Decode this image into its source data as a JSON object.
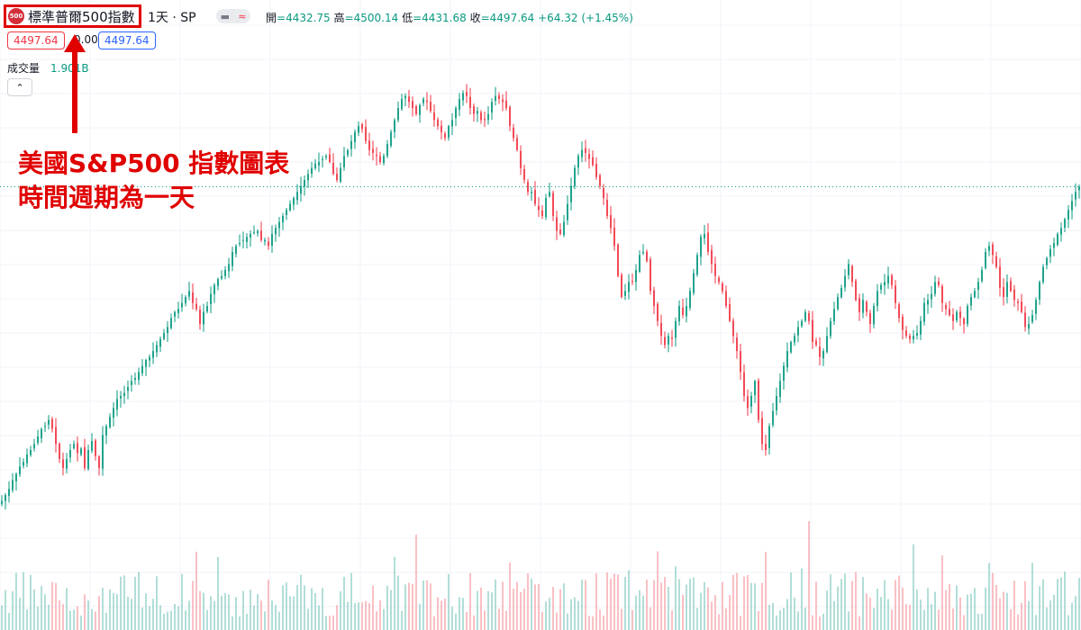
{
  "header": {
    "logo_text": "500",
    "symbol_name": "標準普爾500指數",
    "interval": "1天 · SP",
    "toggle": {
      "left_icon": "pill-icon",
      "right_icon": "approx-icon",
      "right_symbol": "≈"
    },
    "ohlc": {
      "open_label": "開",
      "open": "=4432.75",
      "high_label": "高",
      "high": "=4500.14",
      "low_label": "低",
      "low": "=4431.68",
      "close_label": "收",
      "close": "=4497.64",
      "change": "+64.32 (+1.45%)"
    },
    "price_boxes": {
      "bid": "4497.64",
      "spread": "0.00",
      "ask": "4497.64"
    },
    "volume": {
      "label": "成交量",
      "value": "1.901B"
    },
    "collapse_symbol": "⌃"
  },
  "annotation": {
    "line1": "美國S&P500 指數圖表",
    "line2": "時間週期為一天"
  },
  "colors": {
    "up": "#089981",
    "down": "#f23645",
    "annotation": "#e00000",
    "grid": "#f0f3fa"
  },
  "chart_data": {
    "type": "candlestick",
    "close_reference": 4497.64,
    "y_range": [
      3440,
      4940
    ],
    "grid": true,
    "volume_panel": true,
    "series_close": [
      3450,
      3470,
      3490,
      3520,
      3540,
      3565,
      3580,
      3605,
      3620,
      3640,
      3665,
      3690,
      3700,
      3720,
      3690,
      3640,
      3590,
      3560,
      3590,
      3620,
      3640,
      3610,
      3625,
      3560,
      3620,
      3650,
      3600,
      3560,
      3670,
      3700,
      3730,
      3760,
      3790,
      3800,
      3810,
      3830,
      3850,
      3860,
      3880,
      3900,
      3920,
      3930,
      3950,
      3970,
      3990,
      4010,
      4030,
      4060,
      4080,
      4090,
      4110,
      4130,
      4150,
      4110,
      4090,
      4040,
      4080,
      4100,
      4140,
      4170,
      4190,
      4200,
      4220,
      4240,
      4280,
      4300,
      4310,
      4320,
      4330,
      4340,
      4345,
      4350,
      4320,
      4320,
      4300,
      4340,
      4360,
      4380,
      4400,
      4420,
      4440,
      4460,
      4480,
      4500,
      4520,
      4540,
      4560,
      4575,
      4580,
      4590,
      4600,
      4580,
      4540,
      4520,
      4560,
      4600,
      4620,
      4650,
      4680,
      4700,
      4690,
      4650,
      4620,
      4610,
      4600,
      4580,
      4600,
      4640,
      4680,
      4720,
      4760,
      4790,
      4800,
      4780,
      4760,
      4740,
      4770,
      4790,
      4780,
      4750,
      4720,
      4700,
      4680,
      4660,
      4700,
      4720,
      4760,
      4790,
      4810,
      4800,
      4760,
      4740,
      4750,
      4720,
      4720,
      4740,
      4780,
      4800,
      4790,
      4780,
      4760,
      4700,
      4660,
      4620,
      4560,
      4520,
      4480,
      4480,
      4440,
      4420,
      4400,
      4460,
      4480,
      4400,
      4350,
      4340,
      4380,
      4440,
      4500,
      4560,
      4600,
      4620,
      4610,
      4590,
      4570,
      4530,
      4500,
      4460,
      4400,
      4360,
      4300,
      4200,
      4130,
      4150,
      4180,
      4180,
      4220,
      4270,
      4280,
      4250,
      4150,
      4100,
      4050,
      4000,
      3970,
      4000,
      3990,
      4050,
      4100,
      4070,
      4100,
      4150,
      4210,
      4270,
      4330,
      4340,
      4280,
      4240,
      4200,
      4180,
      4150,
      4100,
      4050,
      4000,
      3950,
      3880,
      3800,
      3760,
      3800,
      3850,
      3720,
      3640,
      3620,
      3700,
      3750,
      3800,
      3850,
      3900,
      3950,
      3980,
      4000,
      4030,
      4050,
      4080,
      4050,
      3980,
      3970,
      3930,
      3950,
      4000,
      4050,
      4090,
      4130,
      4160,
      4200,
      4240,
      4180,
      4120,
      4080,
      4120,
      4080,
      4040,
      4100,
      4150,
      4170,
      4180,
      4200,
      4170,
      4110,
      4060,
      4020,
      4000,
      3990,
      4000,
      4010,
      4050,
      4110,
      4120,
      4140,
      4180,
      4170,
      4110,
      4090,
      4070,
      4050,
      4080,
      4060,
      4040,
      4100,
      4130,
      4150,
      4180,
      4220,
      4280,
      4300,
      4270,
      4230,
      4160,
      4130,
      4180,
      4150,
      4120,
      4110,
      4080,
      4030,
      4040,
      4070,
      4120,
      4180,
      4230,
      4260,
      4290,
      4310,
      4340,
      4360,
      4390,
      4420,
      4450,
      4480,
      4497.64
    ]
  }
}
